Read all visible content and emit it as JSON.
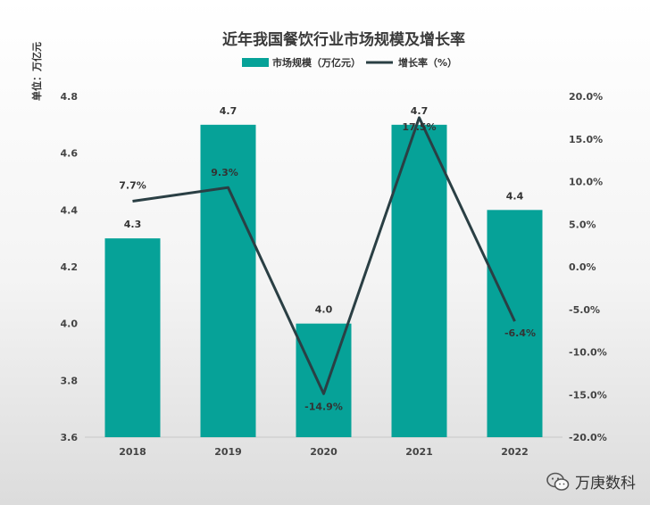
{
  "chart_data": {
    "type": "bar",
    "title": "近年我国餐饮行业市场规模及增长率",
    "unit_label": "单位：万亿元",
    "categories": [
      "2018",
      "2019",
      "2020",
      "2021",
      "2022"
    ],
    "series": [
      {
        "name": "市场规模（万亿元）",
        "type": "bar",
        "axis": "left",
        "values": [
          4.3,
          4.7,
          4.0,
          4.7,
          4.4
        ],
        "labels": [
          "4.3",
          "4.7",
          "4.0",
          "4.7",
          "4.4"
        ],
        "color": "#06a298"
      },
      {
        "name": "增长率（%）",
        "type": "line",
        "axis": "right",
        "values": [
          7.7,
          9.3,
          -14.9,
          17.5,
          -6.4
        ],
        "labels": [
          "7.7%",
          "9.3%",
          "-14.9%",
          "17.5%",
          "-6.4%"
        ],
        "color": "#2a3f44"
      }
    ],
    "y_left": {
      "ylim": [
        3.6,
        4.8
      ],
      "ticks": [
        "3.6",
        "3.8",
        "4.0",
        "4.2",
        "4.4",
        "4.6",
        "4.8"
      ]
    },
    "y_right": {
      "ylim": [
        -20,
        20
      ],
      "ticks": [
        "-20.0%",
        "-15.0%",
        "-10.0%",
        "-5.0%",
        "0.0%",
        "5.0%",
        "10.0%",
        "15.0%",
        "20.0%"
      ]
    },
    "grid": false,
    "legend_position": "top-center"
  },
  "watermark": {
    "text": "万庚数科",
    "icon": "wechat-icon"
  }
}
